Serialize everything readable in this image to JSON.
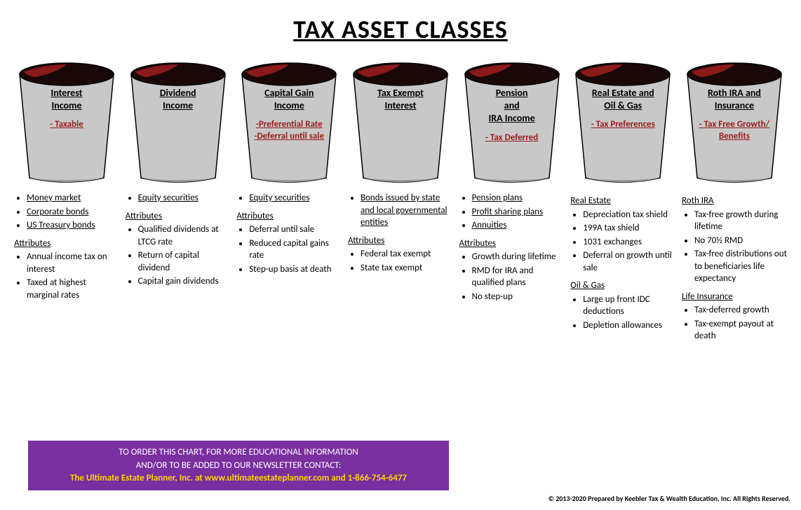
{
  "title": "TAX ASSET CLASSES",
  "colors": {
    "bucket_fill": "#c8c8c8",
    "bucket_stroke": "#000000",
    "bucket_rim_dark": "#1a0808",
    "bucket_rim_red": "#8b1a1a",
    "tag_red": "#9c1c1c",
    "banner_bg": "#7a2fa0",
    "banner_accent": "#ffd400",
    "banner_text": "#ffffff",
    "text": "#000000"
  },
  "buckets": [
    {
      "name": "Interest Income",
      "tags": [
        "- Taxable"
      ]
    },
    {
      "name": "Dividend Income",
      "tags": []
    },
    {
      "name": "Capital Gain Income",
      "tags": [
        "-Preferential Rate",
        "-Deferral until sale"
      ]
    },
    {
      "name": "Tax Exempt Interest",
      "tags": []
    },
    {
      "name": "Pension and IRA Income",
      "tags": [
        "- Tax Deferred"
      ]
    },
    {
      "name": "Real Estate and Oil & Gas",
      "tags": [
        "- Tax Preferences"
      ]
    },
    {
      "name": "Roth IRA and Insurance",
      "tags": [
        "- Tax Free Growth/ Benefits"
      ]
    }
  ],
  "columns": [
    {
      "sections": [
        {
          "items_underlined": [
            "Money market",
            "Corporate bonds",
            "US Treasury bonds"
          ]
        },
        {
          "heading": "Attributes",
          "items": [
            "Annual income tax on interest",
            "Taxed at highest marginal rates"
          ]
        }
      ]
    },
    {
      "sections": [
        {
          "items_underlined": [
            "Equity securities"
          ]
        },
        {
          "heading": "Attributes",
          "items": [
            "Qualified dividends  at LTCG rate",
            "Return of capital dividend",
            "Capital gain dividends"
          ]
        }
      ]
    },
    {
      "sections": [
        {
          "items_underlined": [
            "Equity securities"
          ]
        },
        {
          "heading": "Attributes",
          "items": [
            "Deferral until sale",
            "Reduced capital gains rate",
            "Step-up basis at death"
          ]
        }
      ]
    },
    {
      "sections": [
        {
          "items_underlined": [
            "Bonds issued by state and local governmental entities"
          ]
        },
        {
          "heading": "Attributes",
          "items": [
            "Federal tax exempt",
            "State tax exempt"
          ]
        }
      ]
    },
    {
      "sections": [
        {
          "items_underlined": [
            "Pension plans",
            "Profit sharing plans",
            "Annuities"
          ]
        },
        {
          "heading": "Attributes",
          "items": [
            "Growth during lifetime",
            "RMD for IRA and qualified plans",
            "No step-up"
          ]
        }
      ]
    },
    {
      "sections": [
        {
          "heading": "Real Estate",
          "items": [
            "Depreciation tax shield",
            "199A tax shield",
            "1031 exchanges",
            "Deferral on growth until sale"
          ]
        },
        {
          "heading": "Oil & Gas",
          "items": [
            "Large up front IDC deductions",
            "Depletion allowances"
          ]
        }
      ]
    },
    {
      "sections": [
        {
          "heading": "Roth IRA",
          "items": [
            "Tax-free growth during lifetime",
            "No 70½  RMD",
            "Tax-free distributions out to beneficiaries life expectancy"
          ]
        },
        {
          "heading": "Life Insurance",
          "items": [
            "Tax-deferred growth",
            "Tax-exempt payout at death"
          ]
        }
      ]
    }
  ],
  "banner": {
    "line1": "TO ORDER THIS CHART, FOR MORE EDUCATIONAL INFORMATION",
    "line2": "AND/OR TO BE ADDED TO OUR NEWSLETTER CONTACT:",
    "line3": "The Ultimate Estate Planner, Inc. at www.ultimateestateplanner.com and 1-866-754-6477"
  },
  "copyright": "© 2013-2020 Prepared by Keebler Tax & Wealth Education, Inc. All Rights Reserved."
}
